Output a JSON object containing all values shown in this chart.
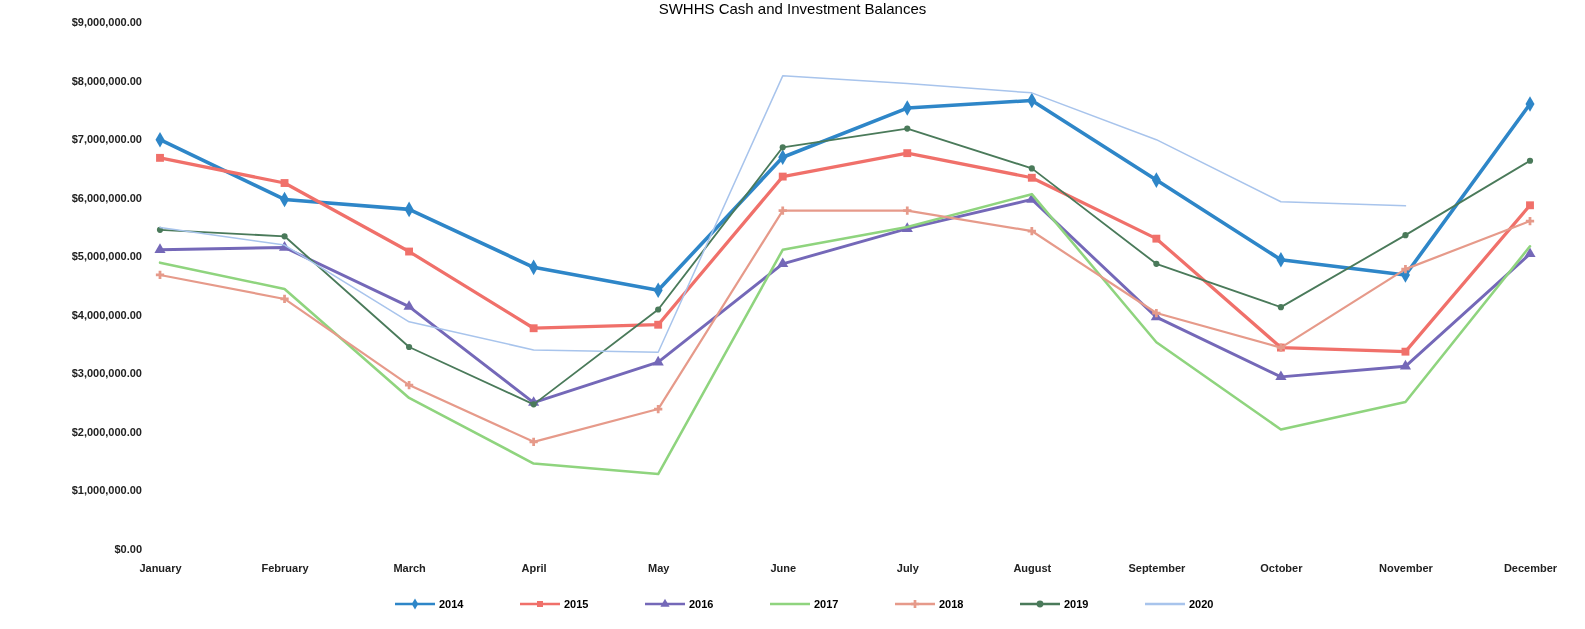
{
  "chart_data": {
    "type": "line",
    "title": "SWHHS Cash and Investment Balances",
    "categories": [
      "January",
      "February",
      "March",
      "April",
      "May",
      "June",
      "July",
      "August",
      "September",
      "October",
      "November",
      "December"
    ],
    "ylim": [
      0,
      9000000
    ],
    "yticks": [
      {
        "value": 0,
        "label": "$0.00"
      },
      {
        "value": 1000000,
        "label": "$1,000,000.00"
      },
      {
        "value": 2000000,
        "label": "$2,000,000.00"
      },
      {
        "value": 3000000,
        "label": "$3,000,000.00"
      },
      {
        "value": 4000000,
        "label": "$4,000,000.00"
      },
      {
        "value": 5000000,
        "label": "$5,000,000.00"
      },
      {
        "value": 6000000,
        "label": "$6,000,000.00"
      },
      {
        "value": 7000000,
        "label": "$7,000,000.00"
      },
      {
        "value": 8000000,
        "label": "$8,000,000.00"
      },
      {
        "value": 9000000,
        "label": "$9,000,000.00"
      }
    ],
    "grid": false,
    "legend": "bottom",
    "series": [
      {
        "name": "2014",
        "color": "#2e86c8",
        "marker": "diamond",
        "values": [
          6990000,
          5970000,
          5800000,
          4810000,
          4420000,
          6690000,
          7530000,
          7660000,
          6300000,
          4940000,
          4680000,
          7600000
        ]
      },
      {
        "name": "2015",
        "color": "#f0706a",
        "marker": "square",
        "values": [
          6680000,
          6250000,
          5080000,
          3770000,
          3830000,
          6360000,
          6760000,
          6340000,
          5300000,
          3440000,
          3370000,
          5870000
        ]
      },
      {
        "name": "2016",
        "color": "#7468b8",
        "marker": "triangle",
        "values": [
          5110000,
          5150000,
          4140000,
          2500000,
          3190000,
          4870000,
          5470000,
          5970000,
          3960000,
          2940000,
          3120000,
          5040000
        ]
      },
      {
        "name": "2017",
        "color": "#8fd47e",
        "marker": "none",
        "values": [
          4890000,
          4440000,
          2580000,
          1460000,
          1280000,
          5110000,
          5500000,
          6060000,
          3530000,
          2040000,
          2510000,
          5170000
        ]
      },
      {
        "name": "2018",
        "color": "#e69a8a",
        "marker": "cross",
        "values": [
          4680000,
          4270000,
          2800000,
          1830000,
          2390000,
          5780000,
          5780000,
          5430000,
          4030000,
          3440000,
          4780000,
          5600000
        ]
      },
      {
        "name": "2019",
        "color": "#4a7a5a",
        "marker": "circle",
        "values": [
          5450000,
          5340000,
          3450000,
          2470000,
          4090000,
          6860000,
          7180000,
          6500000,
          4870000,
          4130000,
          5360000,
          6630000
        ]
      },
      {
        "name": "2020",
        "color": "#a8c4ec",
        "marker": "none",
        "values": [
          5490000,
          5190000,
          3880000,
          3400000,
          3360000,
          8080000,
          7950000,
          7790000,
          6990000,
          5930000,
          5860000,
          null
        ]
      }
    ]
  }
}
